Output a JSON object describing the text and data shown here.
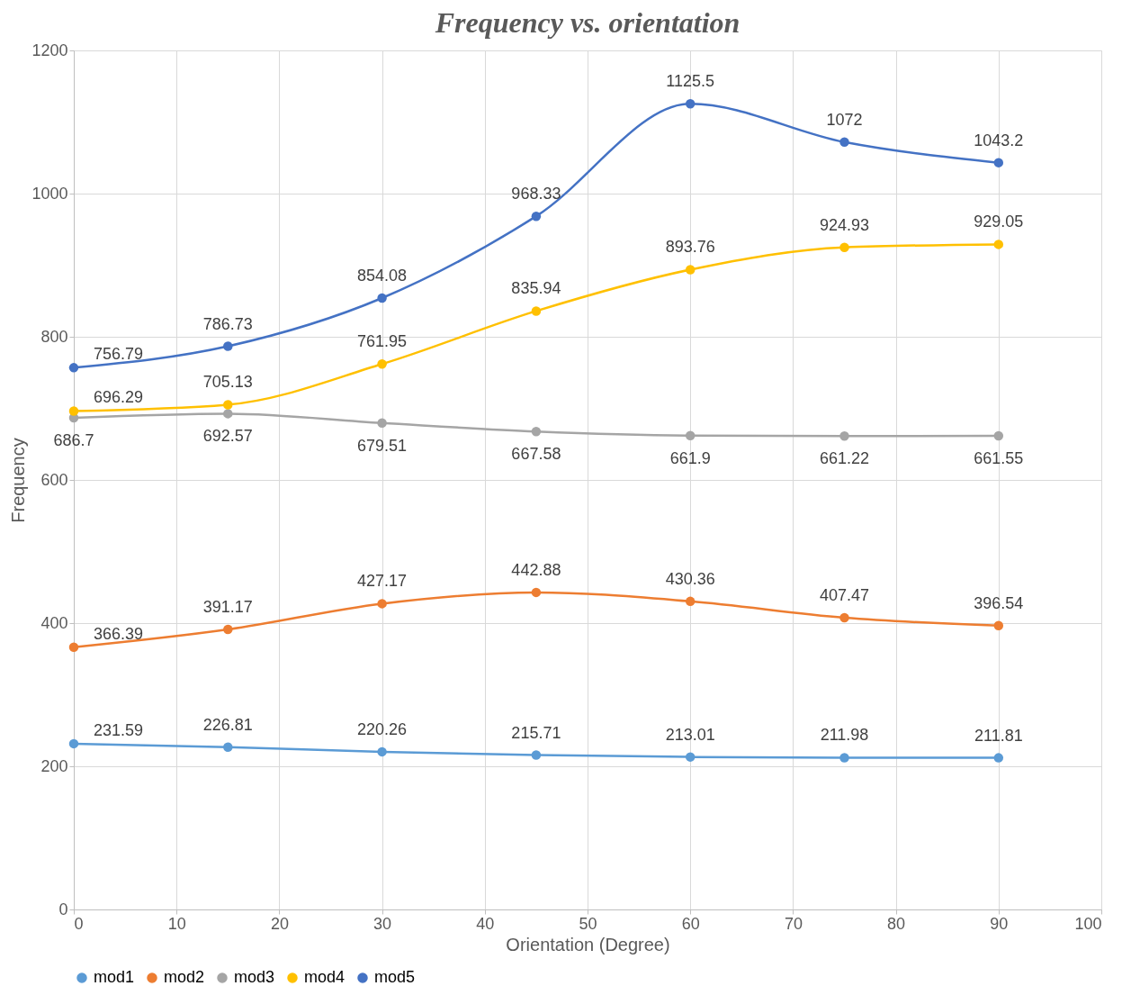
{
  "chart_data": {
    "type": "line",
    "title": "Frequency vs. orientation",
    "xlabel": "Orientation (Degree)",
    "ylabel": "Frequency",
    "x": [
      0,
      15,
      30,
      45,
      60,
      75,
      90
    ],
    "series": [
      {
        "name": "mod1",
        "color": "#5b9bd5",
        "values": [
          231.59,
          226.81,
          220.26,
          215.71,
          213.01,
          211.98,
          211.81
        ]
      },
      {
        "name": "mod2",
        "color": "#ed7d31",
        "values": [
          366.39,
          391.17,
          427.17,
          442.88,
          430.36,
          407.47,
          396.54
        ]
      },
      {
        "name": "mod3",
        "color": "#a5a5a5",
        "values": [
          686.7,
          692.57,
          679.51,
          667.58,
          661.9,
          661.22,
          661.55
        ]
      },
      {
        "name": "mod4",
        "color": "#ffc000",
        "values": [
          696.29,
          705.13,
          761.95,
          835.94,
          893.76,
          924.93,
          929.05
        ]
      },
      {
        "name": "mod5",
        "color": "#4472c4",
        "values": [
          756.79,
          786.73,
          854.08,
          968.33,
          1125.5,
          1072,
          1043.2
        ]
      }
    ],
    "xlim": [
      0,
      100
    ],
    "xticks": [
      0,
      10,
      20,
      30,
      40,
      50,
      60,
      70,
      80,
      90,
      100
    ],
    "ylim": [
      0,
      1200
    ],
    "yticks": [
      0,
      200,
      400,
      600,
      800,
      1000,
      1200
    ],
    "grid": true,
    "legend": "bottom",
    "marker": "circle",
    "line_style": "solid",
    "data_labels": true
  }
}
